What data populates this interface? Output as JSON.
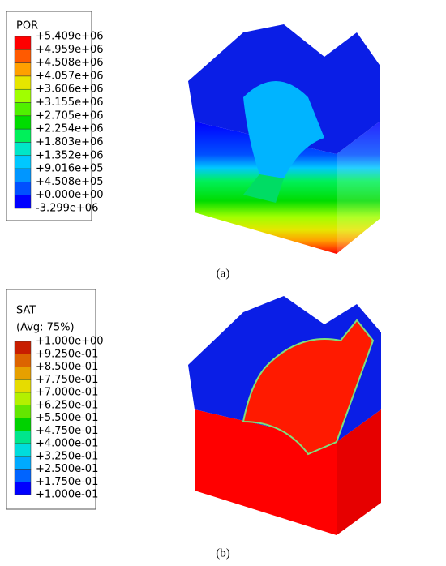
{
  "panels": [
    {
      "legend": {
        "title": "POR",
        "labels": [
          "+5.409e+06",
          "+4.959e+06",
          "+4.508e+06",
          "+4.057e+06",
          "+3.606e+06",
          "+3.155e+06",
          "+2.705e+06",
          "+2.254e+06",
          "+1.803e+06",
          "+1.352e+06",
          "+9.016e+05",
          "+4.508e+05",
          "+0.000e+00",
          "-3.299e+06"
        ],
        "colors": [
          "#ff0000",
          "#ff5a00",
          "#ffa000",
          "#e6e600",
          "#a0ff00",
          "#50f000",
          "#00dc00",
          "#00f05a",
          "#00e6c8",
          "#00c8ff",
          "#0096ff",
          "#0050ff",
          "#0000ff"
        ]
      },
      "caption": "(a)"
    },
    {
      "legend": {
        "title": "SAT",
        "subtitle": "(Avg: 75%)",
        "labels": [
          "+1.000e+00",
          "+9.250e-01",
          "+8.500e-01",
          "+7.750e-01",
          "+7.000e-01",
          "+6.250e-01",
          "+5.500e-01",
          "+4.750e-01",
          "+4.000e-01",
          "+3.250e-01",
          "+2.500e-01",
          "+1.750e-01",
          "+1.000e-01"
        ],
        "colors": [
          "#c81e00",
          "#dc6400",
          "#e6a000",
          "#e6dc00",
          "#b4f000",
          "#64e600",
          "#00d200",
          "#00e68c",
          "#00dcdc",
          "#00aaff",
          "#0064ff",
          "#0000ff"
        ]
      },
      "caption": "(b)"
    }
  ]
}
